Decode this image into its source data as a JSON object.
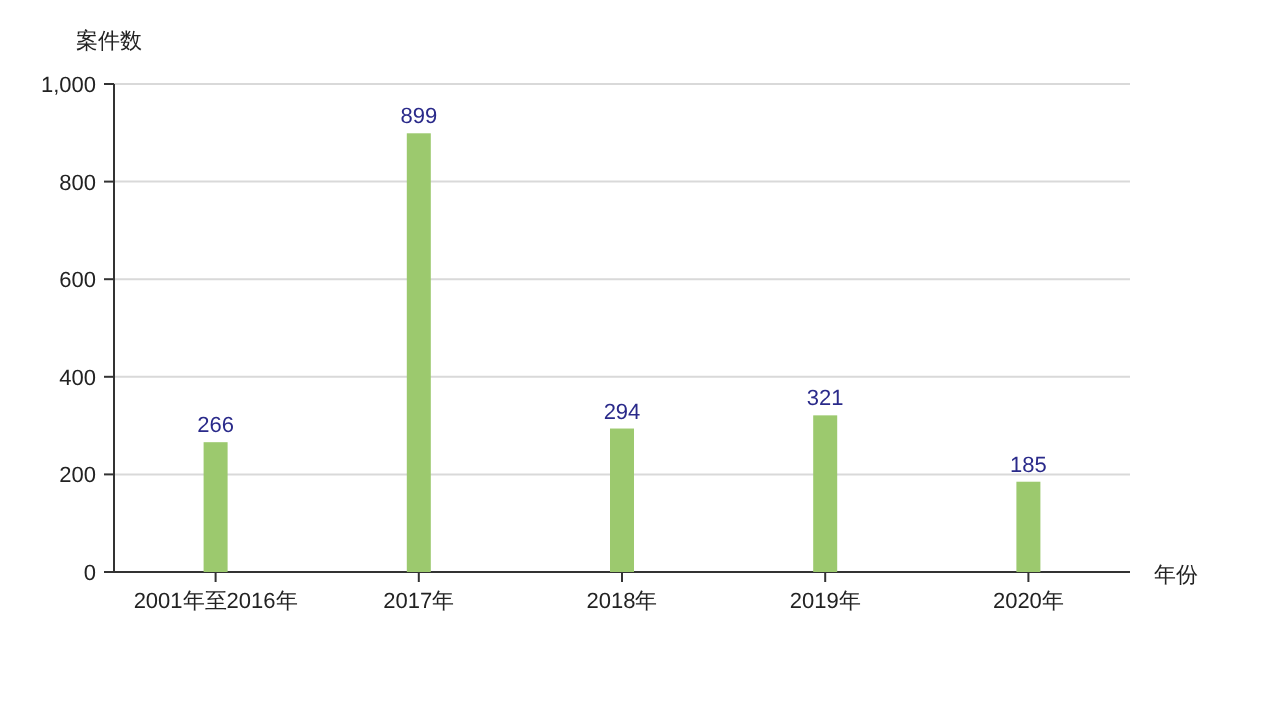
{
  "chart_data": {
    "type": "bar",
    "ylabel": "案件数",
    "xlabel": "年份",
    "categories": [
      "2001年至2016年",
      "2017年",
      "2018年",
      "2019年",
      "2020年"
    ],
    "values": [
      266,
      899,
      294,
      321,
      185
    ],
    "color": "#9cc96e",
    "ylim": [
      0,
      1000
    ],
    "yticks": [
      0,
      200,
      400,
      600,
      800,
      {
        "value": 1000,
        "label": "1,000"
      }
    ],
    "grid": "y",
    "data_labels": true
  }
}
